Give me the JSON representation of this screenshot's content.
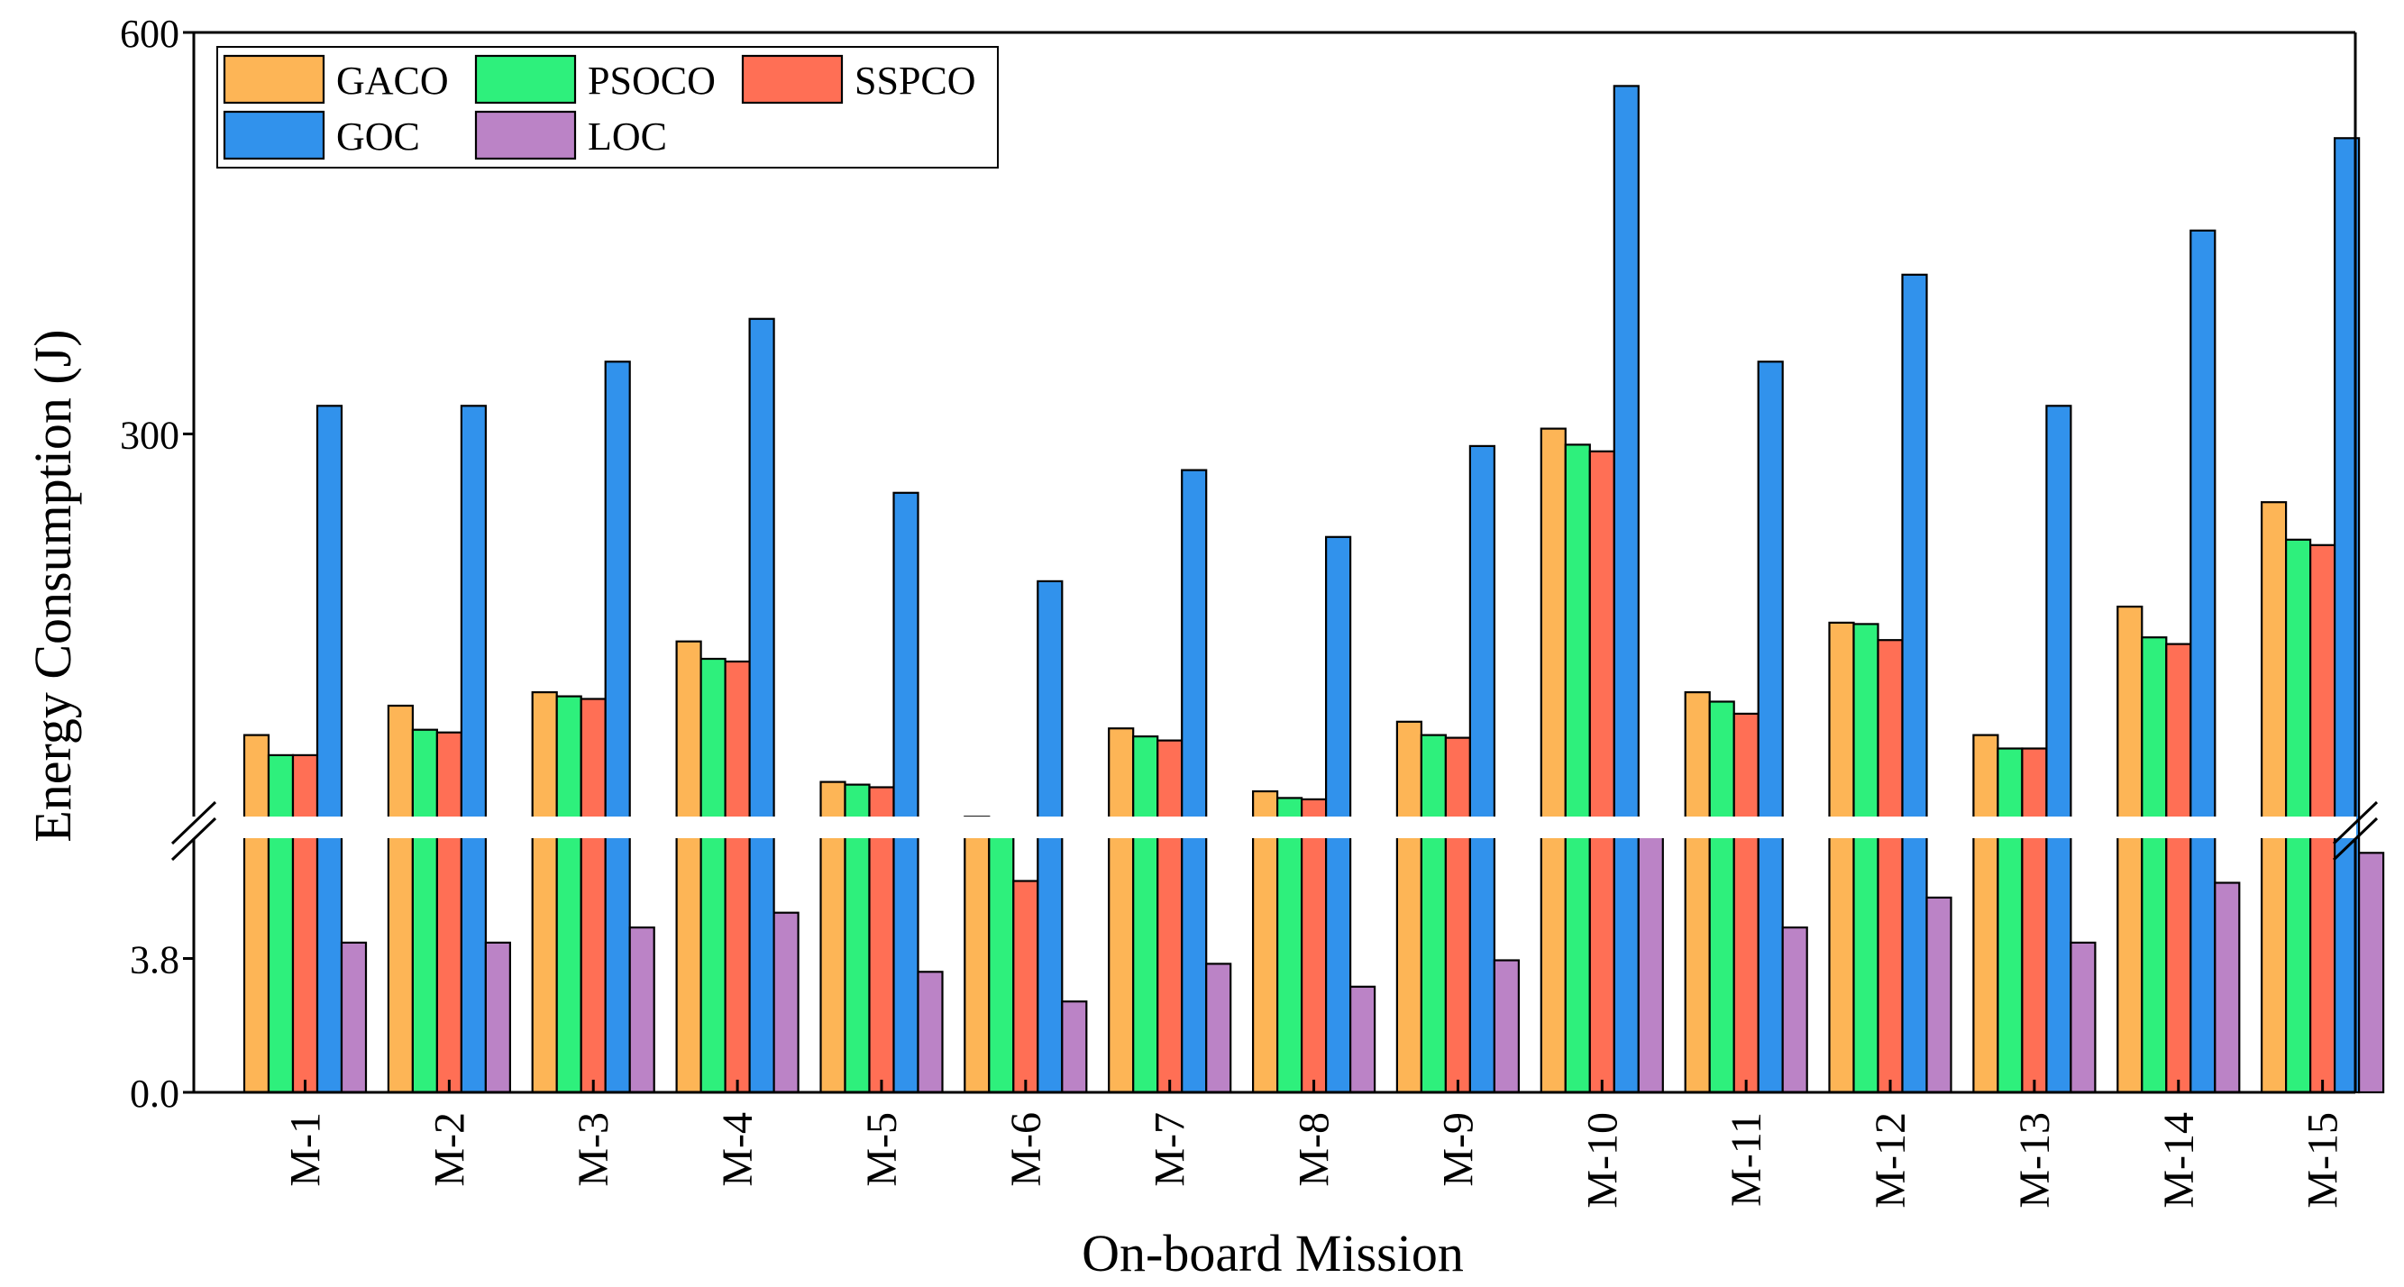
{
  "chart_data": {
    "type": "bar",
    "xlabel": "On-board Mission",
    "ylabel": "Energy Consumption (J)",
    "categories": [
      "M-1",
      "M-2",
      "M-3",
      "M-4",
      "M-5",
      "M-6",
      "M-7",
      "M-8",
      "M-9",
      "M-10",
      "M-11",
      "M-12",
      "M-13",
      "M-14",
      "M-15"
    ],
    "series": [
      {
        "name": "GACO",
        "color": "#FDB556",
        "values": [
          75,
          97,
          107,
          145,
          40,
          14,
          80,
          33,
          85,
          304,
          107,
          159,
          75,
          171,
          249
        ]
      },
      {
        "name": "PSOCO",
        "color": "#2EF07C",
        "values": [
          60,
          79,
          104,
          132,
          38,
          8,
          74,
          28,
          75,
          292,
          100,
          158,
          65,
          148,
          221
        ]
      },
      {
        "name": "SSPCO",
        "color": "#FF6F55",
        "values": [
          60,
          77,
          102,
          130,
          36,
          6,
          71,
          27,
          73,
          287,
          91,
          146,
          65,
          143,
          217
        ]
      },
      {
        "name": "GOC",
        "color": "#3192EC",
        "values": [
          321,
          321,
          354,
          386,
          256,
          190,
          273,
          223,
          291,
          560,
          354,
          419,
          321,
          452,
          521
        ]
      },
      {
        "name": "LOC",
        "color": "#BB83C6",
        "values": [
          4.25,
          4.25,
          4.68,
          5.1,
          3.42,
          2.58,
          3.65,
          3.0,
          3.75,
          7.28,
          4.68,
          5.53,
          4.25,
          5.95,
          6.8
        ]
      }
    ],
    "axis": {
      "lower_range": [
        0,
        7.6
      ],
      "upper_range": [
        7.6,
        600
      ],
      "lower_ticks": [
        "0.0",
        "3.8"
      ],
      "upper_ticks": [
        "300",
        "600"
      ],
      "break": "axis break between 7.6 and ~15"
    },
    "legend": {
      "position": "top-left"
    }
  }
}
